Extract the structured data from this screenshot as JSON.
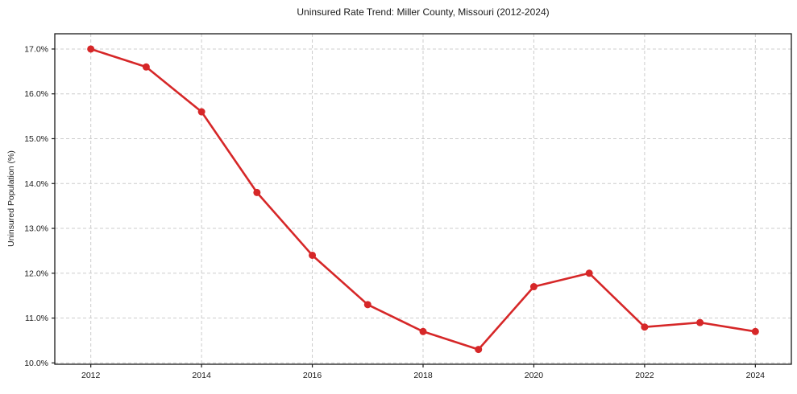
{
  "chart_data": {
    "type": "line",
    "title": "Uninsured Rate Trend: Miller County, Missouri (2012-2024)",
    "xlabel": "",
    "ylabel": "Uninsured Population (%)",
    "x": [
      2012,
      2013,
      2014,
      2015,
      2016,
      2017,
      2018,
      2019,
      2020,
      2021,
      2022,
      2023,
      2024
    ],
    "series": [
      {
        "name": "Uninsured rate",
        "values": [
          17.0,
          16.6,
          15.6,
          13.8,
          12.4,
          11.3,
          10.7,
          10.3,
          11.7,
          12.0,
          10.8,
          10.9,
          10.7
        ]
      }
    ],
    "x_tick_values": [
      2012,
      2014,
      2016,
      2018,
      2020,
      2022,
      2024
    ],
    "x_tick_labels": [
      "2012",
      "2014",
      "2016",
      "2018",
      "2020",
      "2022",
      "2024"
    ],
    "y_tick_values": [
      10.0,
      11.0,
      12.0,
      13.0,
      14.0,
      15.0,
      16.0,
      17.0
    ],
    "y_tick_labels": [
      "10.0%",
      "11.0%",
      "12.0%",
      "13.0%",
      "14.0%",
      "15.0%",
      "16.0%",
      "17.0%"
    ],
    "xlim": [
      2011.35,
      2024.65
    ],
    "ylim": [
      9.97,
      17.34
    ],
    "grid": true,
    "legend": "none",
    "colors": {
      "line": "#d62728",
      "marker": "#d62728",
      "grid": "#cccccc",
      "axis": "#1a1a1a",
      "text": "#1a1a1a",
      "background": "#ffffff"
    }
  }
}
